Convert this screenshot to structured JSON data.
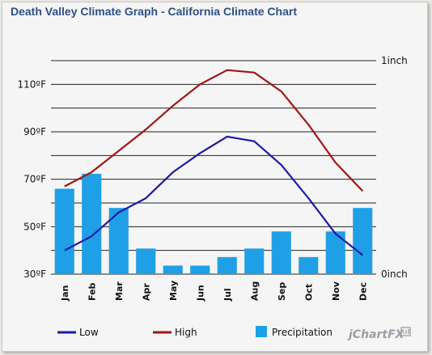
{
  "chart_data": {
    "type": "bar+line",
    "title": "Death Valley Climate Graph - California Climate Chart",
    "categories": [
      "Jan",
      "Feb",
      "Mar",
      "Apr",
      "May",
      "Jun",
      "Jul",
      "Aug",
      "Sep",
      "Oct",
      "Nov",
      "Dec"
    ],
    "left_axis": {
      "ticks": [
        "110ºF",
        "90ºF",
        "70ºF",
        "50ºF",
        "30ºF"
      ],
      "tick_values": [
        110,
        90,
        70,
        50,
        30
      ],
      "ylim": [
        30,
        120
      ]
    },
    "right_axis": {
      "ticks": [
        "1inch",
        "0inch"
      ],
      "tick_values": [
        1,
        0
      ],
      "ylim": [
        0,
        1
      ]
    },
    "grid": true,
    "series": [
      {
        "name": "Low",
        "type": "line",
        "axis": "left",
        "color": "#1a1aa6",
        "values": [
          40,
          46,
          56,
          62,
          73,
          81,
          88,
          86,
          76,
          62,
          47,
          38
        ]
      },
      {
        "name": "High",
        "type": "line",
        "axis": "left",
        "color": "#a31515",
        "values": [
          67,
          73,
          82,
          91,
          101,
          110,
          116,
          115,
          107,
          93,
          77,
          65
        ]
      },
      {
        "name": "Precipitation",
        "type": "bar",
        "axis": "right",
        "color": "#1fa0e6",
        "values": [
          0.4,
          0.47,
          0.31,
          0.12,
          0.04,
          0.04,
          0.08,
          0.12,
          0.2,
          0.08,
          0.2,
          0.31
        ]
      }
    ],
    "legend_position": "bottom",
    "brand": "jChartFX"
  }
}
